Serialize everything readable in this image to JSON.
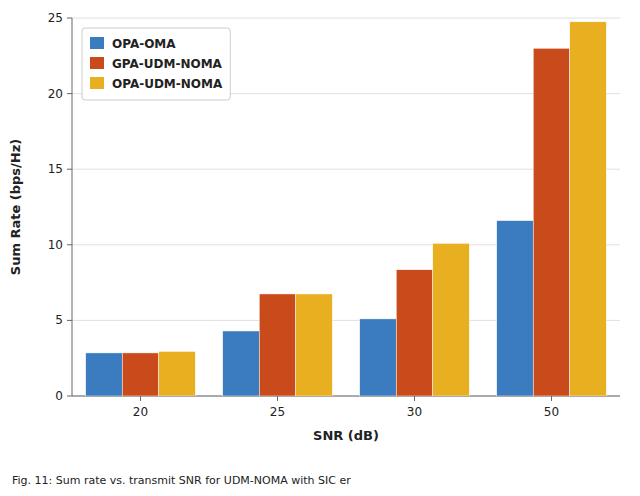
{
  "chart_data": {
    "type": "bar",
    "categories": [
      "20",
      "25",
      "30",
      "50"
    ],
    "series": [
      {
        "name": "OPA-OMA",
        "color": "#3b7bbf",
        "values": [
          2.85,
          4.3,
          5.1,
          11.6
        ]
      },
      {
        "name": "GPA-UDM-NOMA",
        "color": "#c94a1a",
        "values": [
          2.85,
          6.75,
          8.35,
          23.0
        ]
      },
      {
        "name": "OPA-UDM-NOMA",
        "color": "#e8b020",
        "values": [
          2.95,
          6.75,
          10.1,
          24.75
        ]
      }
    ],
    "xlabel": "SNR (dB)",
    "ylabel": "Sum Rate (bps/Hz)",
    "caption": "Fig. 11: Sum rate vs. transmit SNR for UDM-NOMA with SIC er",
    "ylim": [
      0,
      25
    ],
    "yticks": [
      0,
      5,
      10,
      15,
      20,
      25
    ],
    "grid": true,
    "legend": "upper left"
  }
}
